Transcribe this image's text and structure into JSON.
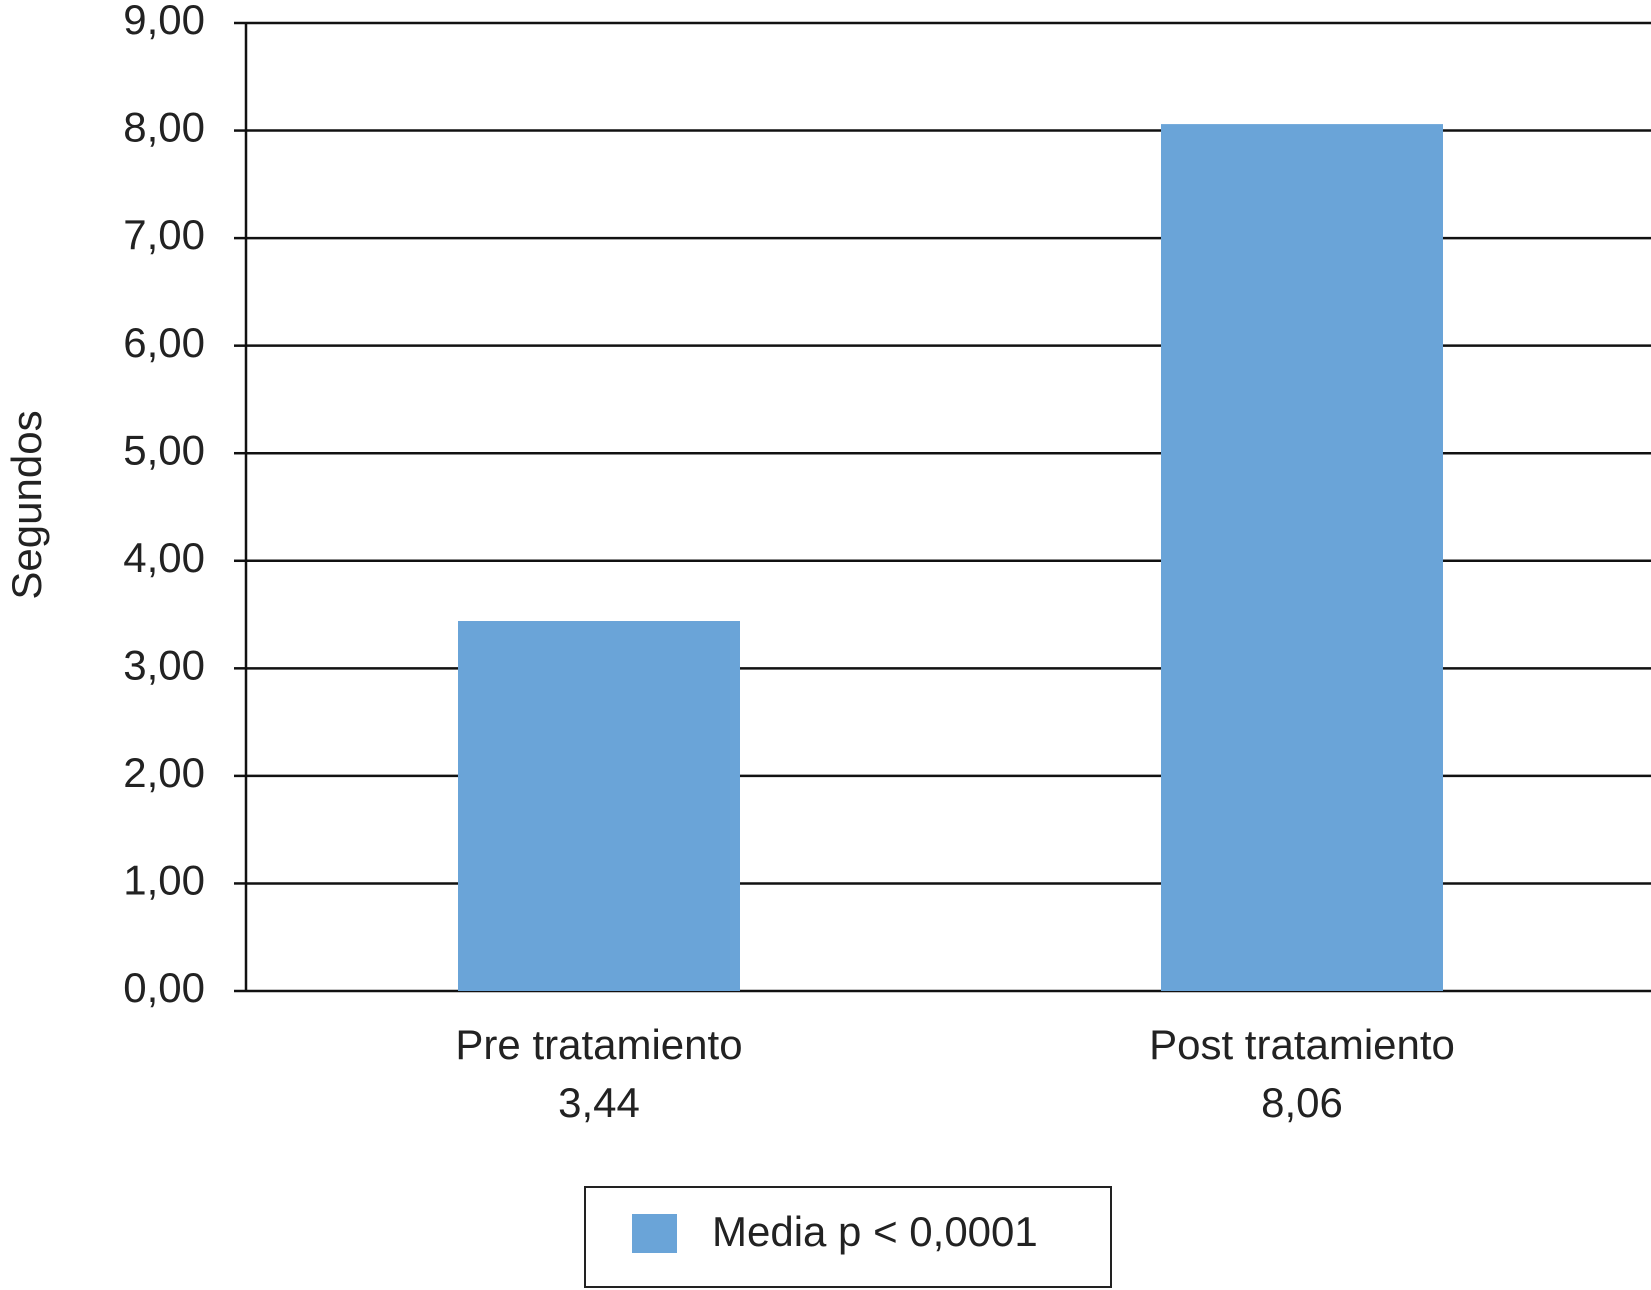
{
  "chart_data": {
    "type": "bar",
    "y_label": "Segundos",
    "categories": [
      "Pre tratamiento",
      "Post tratamiento"
    ],
    "series": [
      {
        "name": "Media p < 0,0001",
        "color": "#6aa4d8",
        "values": [
          3.44,
          8.06
        ],
        "value_labels": [
          "3,44",
          "8,06"
        ]
      }
    ],
    "ylim": [
      0,
      9
    ],
    "yticks": [
      {
        "value": 0,
        "label": "0,00"
      },
      {
        "value": 1,
        "label": "1,00"
      },
      {
        "value": 2,
        "label": "2,00"
      },
      {
        "value": 3,
        "label": "3,00"
      },
      {
        "value": 4,
        "label": "4,00"
      },
      {
        "value": 5,
        "label": "5,00"
      },
      {
        "value": 6,
        "label": "6,00"
      },
      {
        "value": 7,
        "label": "7,00"
      },
      {
        "value": 8,
        "label": "8,00"
      },
      {
        "value": 9,
        "label": "9,00"
      }
    ],
    "grid": true
  }
}
